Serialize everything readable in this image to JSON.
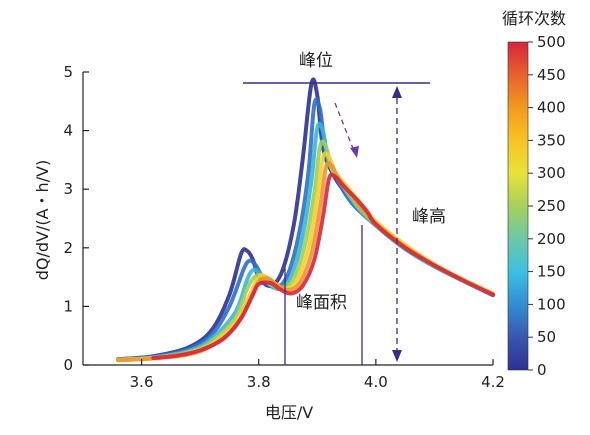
{
  "chart_data": {
    "type": "line",
    "xlabel": "电压/V",
    "ylabel": "dQ/dV/(A・h/V)",
    "xlim": [
      3.5,
      4.2
    ],
    "ylim": [
      0,
      5
    ],
    "x_ticks": [
      "3.6",
      "3.8",
      "4.0",
      "4.2"
    ],
    "y_ticks": [
      "0",
      "1",
      "2",
      "3",
      "4",
      "5"
    ],
    "grid": false,
    "colorbar": {
      "title": "循环次数",
      "range": [
        0,
        500
      ],
      "ticks": [
        "0",
        "50",
        "100",
        "150",
        "200",
        "250",
        "300",
        "350",
        "400",
        "450",
        "500"
      ],
      "colors": [
        "#2e3192",
        "#3a56b0",
        "#2f8fd4",
        "#3dc0e0",
        "#6cc8a8",
        "#a6d05a",
        "#e8e23a",
        "#f7c324",
        "#f39a1e",
        "#e8612c",
        "#d7263d"
      ]
    },
    "annotations": {
      "peak_position": "峰位",
      "peak_height": "峰高",
      "peak_area": "峰面积"
    },
    "series": [
      {
        "cycle": 0,
        "color": "#2e3192",
        "x": [
          3.56,
          3.62,
          3.68,
          3.72,
          3.75,
          3.77,
          3.78,
          3.79,
          3.8,
          3.82,
          3.84,
          3.86,
          3.875,
          3.89,
          3.9,
          3.91,
          3.93,
          3.96,
          4.0,
          4.05,
          4.1,
          4.15,
          4.2
        ],
        "y": [
          0.1,
          0.15,
          0.3,
          0.6,
          1.2,
          1.9,
          1.95,
          1.8,
          1.5,
          1.35,
          1.6,
          2.4,
          3.5,
          4.8,
          4.6,
          3.7,
          3.2,
          2.8,
          2.4,
          2.0,
          1.7,
          1.45,
          1.2
        ]
      },
      {
        "cycle": 100,
        "color": "#2f6fc8",
        "x": [
          3.56,
          3.62,
          3.68,
          3.72,
          3.75,
          3.775,
          3.785,
          3.795,
          3.81,
          3.83,
          3.85,
          3.87,
          3.885,
          3.895,
          3.905,
          3.915,
          3.935,
          3.96,
          4.0,
          4.05,
          4.1,
          4.15,
          4.2
        ],
        "y": [
          0.1,
          0.14,
          0.27,
          0.52,
          1.0,
          1.65,
          1.78,
          1.7,
          1.45,
          1.32,
          1.55,
          2.3,
          3.3,
          4.45,
          4.35,
          3.6,
          3.15,
          2.75,
          2.38,
          1.98,
          1.68,
          1.43,
          1.19
        ]
      },
      {
        "cycle": 200,
        "color": "#38b6d8",
        "x": [
          3.56,
          3.62,
          3.68,
          3.72,
          3.76,
          3.78,
          3.79,
          3.8,
          3.815,
          3.835,
          3.855,
          3.875,
          3.89,
          3.9,
          3.91,
          3.92,
          3.94,
          3.97,
          4.0,
          4.05,
          4.1,
          4.15,
          4.2
        ],
        "y": [
          0.09,
          0.13,
          0.24,
          0.45,
          0.9,
          1.45,
          1.62,
          1.58,
          1.4,
          1.3,
          1.5,
          2.2,
          3.15,
          4.05,
          3.98,
          3.45,
          3.1,
          2.68,
          2.38,
          1.98,
          1.68,
          1.43,
          1.2
        ]
      },
      {
        "cycle": 300,
        "color": "#9ccf5c",
        "x": [
          3.56,
          3.62,
          3.68,
          3.72,
          3.76,
          3.78,
          3.795,
          3.805,
          3.82,
          3.84,
          3.86,
          3.88,
          3.895,
          3.905,
          3.915,
          3.925,
          3.945,
          3.97,
          4.0,
          4.05,
          4.1,
          4.15,
          4.2
        ],
        "y": [
          0.09,
          0.12,
          0.22,
          0.4,
          0.8,
          1.3,
          1.52,
          1.5,
          1.38,
          1.3,
          1.48,
          2.1,
          2.95,
          3.75,
          3.72,
          3.35,
          3.05,
          2.7,
          2.4,
          2.0,
          1.7,
          1.45,
          1.21
        ]
      },
      {
        "cycle": 380,
        "color": "#f3d02a",
        "x": [
          3.56,
          3.62,
          3.68,
          3.72,
          3.76,
          3.785,
          3.8,
          3.81,
          3.825,
          3.845,
          3.865,
          3.885,
          3.9,
          3.91,
          3.92,
          3.93,
          3.95,
          3.975,
          4.0,
          4.05,
          4.1,
          4.15,
          4.2
        ],
        "y": [
          0.09,
          0.12,
          0.2,
          0.36,
          0.72,
          1.2,
          1.5,
          1.52,
          1.4,
          1.3,
          1.45,
          2.0,
          2.85,
          3.55,
          3.55,
          3.3,
          3.05,
          2.75,
          2.45,
          2.05,
          1.72,
          1.45,
          1.22
        ]
      },
      {
        "cycle": 450,
        "color": "#f0932a",
        "x": [
          3.56,
          3.62,
          3.68,
          3.72,
          3.76,
          3.785,
          3.8,
          3.815,
          3.83,
          3.85,
          3.87,
          3.89,
          3.905,
          3.915,
          3.925,
          3.935,
          3.955,
          3.975,
          4.0,
          4.05,
          4.1,
          4.15,
          4.2
        ],
        "y": [
          0.08,
          0.11,
          0.18,
          0.33,
          0.65,
          1.1,
          1.42,
          1.48,
          1.38,
          1.28,
          1.4,
          1.9,
          2.7,
          3.38,
          3.4,
          3.2,
          2.95,
          2.7,
          2.42,
          2.02,
          1.7,
          1.44,
          1.21
        ]
      },
      {
        "cycle": 500,
        "color": "#d7263d",
        "x": [
          3.62,
          3.66,
          3.7,
          3.74,
          3.77,
          3.79,
          3.8,
          3.82,
          3.835,
          3.855,
          3.875,
          3.895,
          3.91,
          3.92,
          3.93,
          3.945,
          3.965,
          3.985,
          4.0,
          4.05,
          4.1,
          4.15,
          4.2
        ],
        "y": [
          0.12,
          0.16,
          0.25,
          0.45,
          0.8,
          1.2,
          1.38,
          1.4,
          1.3,
          1.22,
          1.35,
          1.8,
          2.55,
          3.18,
          3.22,
          3.05,
          2.85,
          2.62,
          2.4,
          2.0,
          1.7,
          1.44,
          1.2
        ]
      }
    ]
  }
}
